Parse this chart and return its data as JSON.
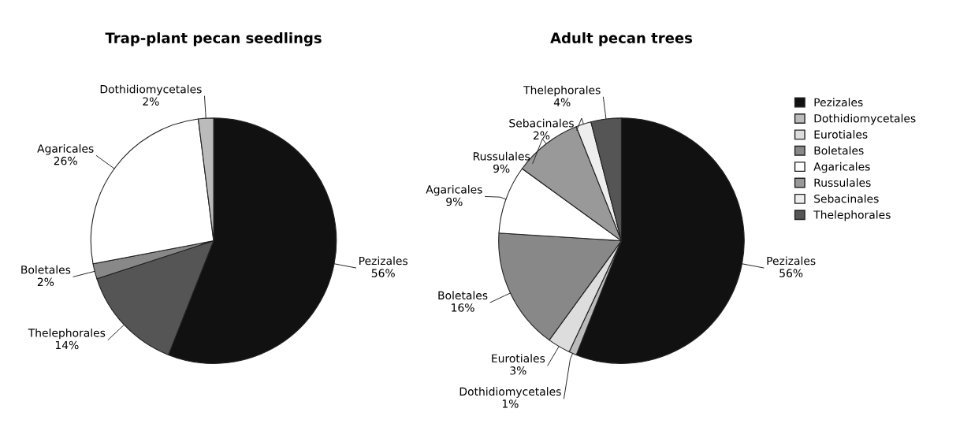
{
  "chart_data": [
    {
      "type": "pie",
      "title": "Trap-plant pecan seedlings",
      "categories": [
        "Pezizales",
        "Thelephorales",
        "Boletales",
        "Agaricales",
        "Dothidiomycetales"
      ],
      "values": [
        56,
        14,
        2,
        26,
        2
      ],
      "value_labels": [
        "56%",
        "14%",
        "2%",
        "26%",
        "2%"
      ],
      "colors": [
        "#111111",
        "#555555",
        "#888888",
        "#ffffff",
        "#bbbbbb"
      ]
    },
    {
      "type": "pie",
      "title": "Adult pecan trees",
      "categories": [
        "Pezizales",
        "Dothidiomycetales",
        "Eurotiales",
        "Boletales",
        "Agaricales",
        "Russulales",
        "Sebacinales",
        "Thelephorales"
      ],
      "values": [
        56,
        1,
        3,
        16,
        9,
        9,
        2,
        4
      ],
      "value_labels": [
        "56%",
        "1%",
        "3%",
        "16%",
        "9%",
        "9%",
        "2%",
        "4%"
      ],
      "colors": [
        "#111111",
        "#bbbbbb",
        "#dddddd",
        "#888888",
        "#ffffff",
        "#999999",
        "#eeeeee",
        "#555555"
      ],
      "legend": "right"
    }
  ]
}
